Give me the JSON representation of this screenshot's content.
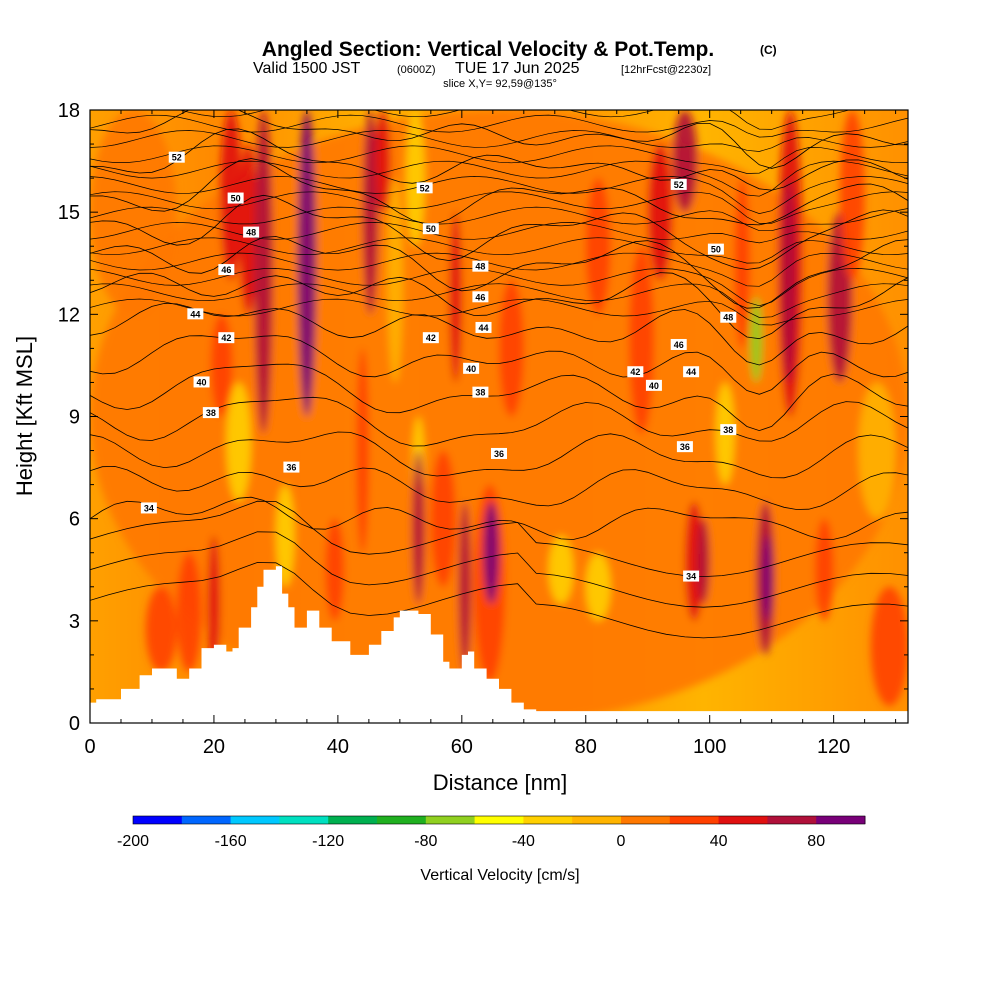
{
  "chart_data": {
    "type": "heatmap",
    "title": "Angled Section: Vertical Velocity & Pot.Temp.",
    "title_unit": "(C)",
    "subtitle_valid": "Valid 1500 JST",
    "subtitle_z": "(0600Z)",
    "subtitle_date": "TUE 17 Jun 2025",
    "subtitle_fcst": "[12hrFcst@2230z]",
    "slice_info": "slice X,Y= 92,59@135°",
    "xlabel": "Distance [nm]",
    "ylabel": "Height [Kft MSL]",
    "xlim": [
      0,
      132
    ],
    "ylim": [
      0,
      18
    ],
    "x_ticks": [
      "0",
      "20",
      "40",
      "60",
      "80",
      "100",
      "120"
    ],
    "y_ticks": [
      "0",
      "3",
      "6",
      "9",
      "12",
      "15",
      "18"
    ],
    "colorbar": {
      "label": "Vertical Velocity [cm/s]",
      "range": [
        -200,
        100
      ],
      "step": 20,
      "tick_labels": [
        "-200",
        "-160",
        "-120",
        "-80",
        "-40",
        "0",
        "40",
        "80"
      ],
      "colors": [
        "#0000ff",
        "#0066ff",
        "#00c8ff",
        "#00e0c0",
        "#00b050",
        "#20b020",
        "#90d020",
        "#ffff00",
        "#ffd000",
        "#ffb400",
        "#ff7800",
        "#ff4000",
        "#e01010",
        "#b0103a",
        "#780078"
      ]
    },
    "contours": {
      "variable": "Potential Temperature (C)",
      "labels": [
        {
          "value": 52,
          "x": 14,
          "y": 16.6
        },
        {
          "value": 52,
          "x": 54,
          "y": 15.7
        },
        {
          "value": 52,
          "x": 95,
          "y": 15.8
        },
        {
          "value": 50,
          "x": 23.5,
          "y": 15.4
        },
        {
          "value": 50,
          "x": 55,
          "y": 14.5
        },
        {
          "value": 50,
          "x": 101,
          "y": 13.9
        },
        {
          "value": 48,
          "x": 26,
          "y": 14.4
        },
        {
          "value": 48,
          "x": 63,
          "y": 13.4
        },
        {
          "value": 48,
          "x": 103,
          "y": 11.9
        },
        {
          "value": 46,
          "x": 22,
          "y": 13.3
        },
        {
          "value": 46,
          "x": 63,
          "y": 12.5
        },
        {
          "value": 46,
          "x": 95,
          "y": 11.1
        },
        {
          "value": 44,
          "x": 17,
          "y": 12
        },
        {
          "value": 44,
          "x": 63.5,
          "y": 11.6
        },
        {
          "value": 44,
          "x": 97,
          "y": 10.3
        },
        {
          "value": 42,
          "x": 22,
          "y": 11.3
        },
        {
          "value": 42,
          "x": 55,
          "y": 11.3
        },
        {
          "value": 42,
          "x": 88,
          "y": 10.3
        },
        {
          "value": 40,
          "x": 18,
          "y": 10
        },
        {
          "value": 40,
          "x": 61.5,
          "y": 10.4
        },
        {
          "value": 40,
          "x": 91,
          "y": 9.9
        },
        {
          "value": 38,
          "x": 19.5,
          "y": 9.1
        },
        {
          "value": 38,
          "x": 63,
          "y": 9.7
        },
        {
          "value": 38,
          "x": 103,
          "y": 8.6
        },
        {
          "value": 36,
          "x": 32.5,
          "y": 7.5
        },
        {
          "value": 36,
          "x": 66,
          "y": 7.9
        },
        {
          "value": 36,
          "x": 96,
          "y": 8.1
        },
        {
          "value": 34,
          "x": 9.5,
          "y": 6.3
        },
        {
          "value": 34,
          "x": 97,
          "y": 4.3
        }
      ]
    },
    "terrain_kft": [
      [
        0,
        0.6
      ],
      [
        1,
        0.7
      ],
      [
        5,
        1.0
      ],
      [
        8,
        1.4
      ],
      [
        10,
        1.6
      ],
      [
        13,
        1.6
      ],
      [
        14,
        1.3
      ],
      [
        16,
        1.6
      ],
      [
        18,
        2.2
      ],
      [
        20,
        2.3
      ],
      [
        22,
        2.1
      ],
      [
        23,
        2.2
      ],
      [
        24,
        2.8
      ],
      [
        26,
        3.4
      ],
      [
        27,
        4.0
      ],
      [
        28,
        4.5
      ],
      [
        30,
        4.6
      ],
      [
        31,
        3.8
      ],
      [
        32,
        3.4
      ],
      [
        33,
        2.8
      ],
      [
        34,
        2.8
      ],
      [
        35,
        3.3
      ],
      [
        37,
        2.8
      ],
      [
        39,
        2.4
      ],
      [
        42,
        2.0
      ],
      [
        45,
        2.3
      ],
      [
        47,
        2.7
      ],
      [
        49,
        3.1
      ],
      [
        50,
        3.3
      ],
      [
        53,
        3.2
      ],
      [
        55,
        2.6
      ],
      [
        57,
        1.8
      ],
      [
        58,
        1.6
      ],
      [
        60,
        2.0
      ],
      [
        61,
        2.1
      ],
      [
        62,
        1.6
      ],
      [
        64,
        1.3
      ],
      [
        66,
        1.0
      ],
      [
        68,
        0.6
      ],
      [
        70,
        0.4
      ],
      [
        72,
        0.35
      ],
      [
        80,
        0.35
      ],
      [
        100,
        0.35
      ],
      [
        120,
        0.35
      ],
      [
        132,
        0.35
      ]
    ]
  }
}
